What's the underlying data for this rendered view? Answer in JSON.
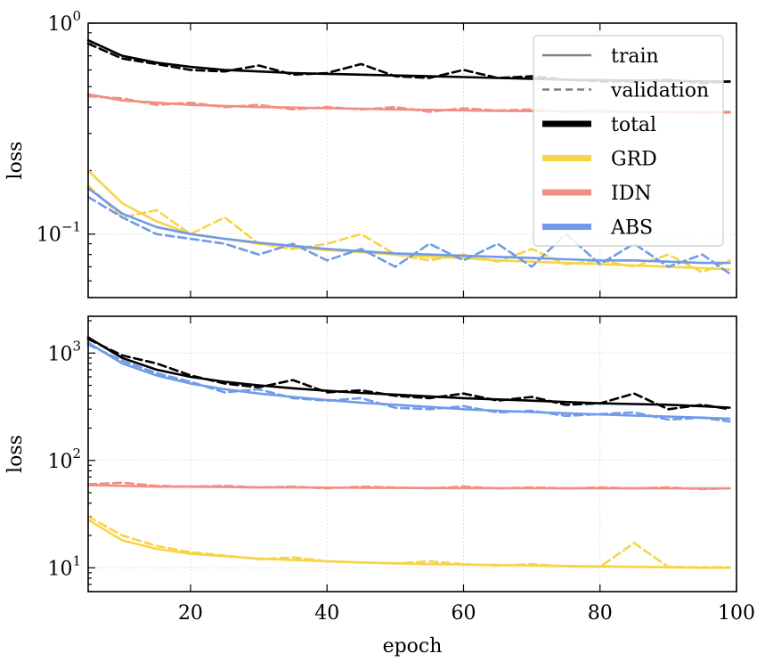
{
  "chart_data": [
    {
      "type": "line",
      "panel": "top",
      "ylabel": "loss",
      "yscale": "log",
      "ylim": [
        0.05,
        1.0
      ],
      "xlim": [
        5,
        100
      ],
      "xticks": [
        20,
        40,
        60,
        80,
        100
      ],
      "yticks": [
        {
          "value": 0.1,
          "base": "10",
          "exp": "−1"
        },
        {
          "value": 1.0,
          "base": "10",
          "exp": "0"
        }
      ],
      "grid": true,
      "x": [
        5,
        10,
        15,
        20,
        25,
        30,
        35,
        40,
        45,
        50,
        55,
        60,
        65,
        70,
        75,
        80,
        85,
        90,
        95,
        99
      ],
      "series": [
        {
          "name": "total",
          "split": "train",
          "color": "#000000",
          "values": [
            0.83,
            0.7,
            0.65,
            0.62,
            0.6,
            0.59,
            0.58,
            0.575,
            0.57,
            0.565,
            0.56,
            0.555,
            0.55,
            0.545,
            0.54,
            0.537,
            0.535,
            0.532,
            0.53,
            0.528
          ]
        },
        {
          "name": "total",
          "split": "validation",
          "color": "#000000",
          "values": [
            0.8,
            0.68,
            0.64,
            0.6,
            0.59,
            0.63,
            0.57,
            0.58,
            0.64,
            0.56,
            0.55,
            0.6,
            0.55,
            0.56,
            0.54,
            0.53,
            0.53,
            0.54,
            0.52,
            0.53
          ]
        },
        {
          "name": "GRD",
          "split": "train",
          "color": "#f7d447",
          "values": [
            0.2,
            0.14,
            0.115,
            0.1,
            0.095,
            0.09,
            0.087,
            0.084,
            0.082,
            0.08,
            0.078,
            0.077,
            0.075,
            0.074,
            0.073,
            0.072,
            0.071,
            0.07,
            0.069,
            0.068
          ]
        },
        {
          "name": "GRD",
          "split": "validation",
          "color": "#f7d447",
          "values": [
            0.17,
            0.12,
            0.13,
            0.1,
            0.12,
            0.09,
            0.085,
            0.09,
            0.1,
            0.08,
            0.075,
            0.08,
            0.074,
            0.085,
            0.072,
            0.075,
            0.07,
            0.08,
            0.066,
            0.075
          ]
        },
        {
          "name": "IDN",
          "split": "train",
          "color": "#f28e82",
          "values": [
            0.46,
            0.43,
            0.42,
            0.41,
            0.405,
            0.4,
            0.398,
            0.395,
            0.393,
            0.39,
            0.388,
            0.386,
            0.384,
            0.383,
            0.382,
            0.381,
            0.38,
            0.379,
            0.378,
            0.377
          ]
        },
        {
          "name": "IDN",
          "split": "validation",
          "color": "#f28e82",
          "values": [
            0.45,
            0.44,
            0.41,
            0.42,
            0.4,
            0.41,
            0.39,
            0.4,
            0.39,
            0.4,
            0.38,
            0.395,
            0.385,
            0.39,
            0.38,
            0.385,
            0.378,
            0.38,
            0.375,
            0.38
          ]
        },
        {
          "name": "ABS",
          "split": "train",
          "color": "#6f9be8",
          "values": [
            0.165,
            0.125,
            0.108,
            0.1,
            0.095,
            0.091,
            0.088,
            0.085,
            0.083,
            0.081,
            0.08,
            0.079,
            0.078,
            0.077,
            0.076,
            0.075,
            0.075,
            0.074,
            0.073,
            0.073
          ]
        },
        {
          "name": "ABS",
          "split": "validation",
          "color": "#6f9be8",
          "values": [
            0.15,
            0.12,
            0.1,
            0.095,
            0.09,
            0.08,
            0.09,
            0.075,
            0.085,
            0.07,
            0.09,
            0.075,
            0.09,
            0.07,
            0.1,
            0.072,
            0.09,
            0.07,
            0.08,
            0.065
          ]
        }
      ],
      "legend": {
        "position": "top-right",
        "entries": [
          {
            "label": "train",
            "style": "solid",
            "color": "#7f7f7f"
          },
          {
            "label": "validation",
            "style": "dashed",
            "color": "#7f7f7f"
          },
          {
            "label": "total",
            "style": "thick",
            "color": "#000000"
          },
          {
            "label": "GRD",
            "style": "thick",
            "color": "#f7d447"
          },
          {
            "label": "IDN",
            "style": "thick",
            "color": "#f28e82"
          },
          {
            "label": "ABS",
            "style": "thick",
            "color": "#6f9be8"
          }
        ]
      }
    },
    {
      "type": "line",
      "panel": "bottom",
      "xlabel": "epoch",
      "ylabel": "loss",
      "yscale": "log",
      "ylim": [
        6,
        2200
      ],
      "xlim": [
        5,
        100
      ],
      "xticks": [
        20,
        40,
        60,
        80,
        100
      ],
      "yticks": [
        {
          "value": 10,
          "base": "10",
          "exp": "1"
        },
        {
          "value": 100,
          "base": "10",
          "exp": "2"
        },
        {
          "value": 1000,
          "base": "10",
          "exp": "3"
        }
      ],
      "grid": true,
      "x": [
        5,
        10,
        15,
        20,
        25,
        30,
        35,
        40,
        45,
        50,
        55,
        60,
        65,
        70,
        75,
        80,
        85,
        90,
        95,
        99
      ],
      "series": [
        {
          "name": "total",
          "split": "train",
          "color": "#000000",
          "values": [
            1400,
            900,
            700,
            600,
            540,
            500,
            470,
            445,
            425,
            410,
            395,
            380,
            370,
            360,
            350,
            340,
            335,
            330,
            320,
            310
          ]
        },
        {
          "name": "total",
          "split": "validation",
          "color": "#000000",
          "values": [
            1350,
            950,
            800,
            620,
            520,
            480,
            560,
            430,
            450,
            400,
            380,
            420,
            360,
            390,
            330,
            340,
            420,
            300,
            330,
            300
          ]
        },
        {
          "name": "GRD",
          "split": "train",
          "color": "#f7d447",
          "values": [
            28,
            18,
            15,
            13.5,
            12.8,
            12.2,
            11.8,
            11.5,
            11.2,
            11.0,
            10.8,
            10.7,
            10.6,
            10.5,
            10.4,
            10.3,
            10.2,
            10.1,
            10.0,
            10.0
          ]
        },
        {
          "name": "GRD",
          "split": "validation",
          "color": "#f7d447",
          "values": [
            30,
            20,
            16,
            14,
            13,
            12,
            12.5,
            11.5,
            11.2,
            11,
            11.5,
            10.8,
            10.5,
            10.8,
            10.3,
            10.2,
            17,
            10.2,
            10.1,
            10.1
          ]
        },
        {
          "name": "IDN",
          "split": "train",
          "color": "#f28e82",
          "values": [
            59,
            58,
            57,
            57,
            56.5,
            56,
            56,
            55.8,
            55.6,
            55.5,
            55.4,
            55.3,
            55.2,
            55.1,
            55.0,
            55.0,
            54.9,
            54.9,
            54.8,
            54.8
          ]
        },
        {
          "name": "IDN",
          "split": "validation",
          "color": "#f28e82",
          "values": [
            60,
            62,
            58,
            57,
            58,
            56,
            57,
            55,
            57,
            56,
            55,
            57,
            55,
            56,
            55,
            56,
            55,
            56,
            54,
            55
          ]
        },
        {
          "name": "ABS",
          "split": "train",
          "color": "#6f9be8",
          "values": [
            1250,
            800,
            620,
            520,
            460,
            420,
            390,
            365,
            345,
            330,
            315,
            300,
            290,
            282,
            275,
            268,
            262,
            256,
            250,
            245
          ]
        },
        {
          "name": "ABS",
          "split": "validation",
          "color": "#6f9be8",
          "values": [
            1200,
            850,
            650,
            540,
            430,
            460,
            380,
            360,
            380,
            310,
            300,
            320,
            280,
            290,
            260,
            270,
            280,
            240,
            250,
            230
          ]
        }
      ]
    }
  ]
}
